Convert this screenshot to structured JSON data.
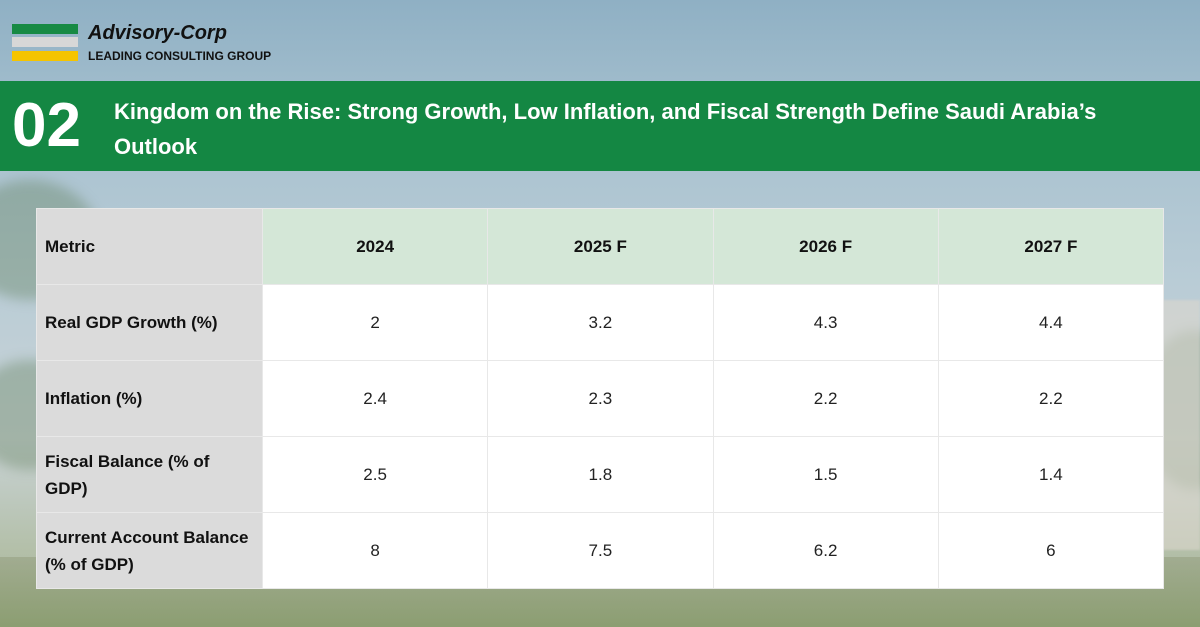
{
  "brand": {
    "name": "Advisory-Corp",
    "tagline": "LEADING CONSULTING GROUP",
    "colors": {
      "green": "#178a44",
      "grey": "#d7d7d7",
      "yellow": "#f5c400"
    }
  },
  "banner": {
    "number": "02",
    "title": "Kingdom on the Rise: Strong Growth, Low Inflation, and Fiscal Strength Define Saudi Arabia’s Outlook",
    "color": "#148743"
  },
  "table": {
    "headers": [
      "Metric",
      "2024",
      "2025 F",
      "2026 F",
      "2027 F"
    ],
    "rows": [
      {
        "metric": "Real GDP Growth (%)",
        "values": [
          "2",
          "3.2",
          "4.3",
          "4.4"
        ]
      },
      {
        "metric": "Inflation (%)",
        "values": [
          "2.4",
          "2.3",
          "2.2",
          "2.2"
        ]
      },
      {
        "metric": "Fiscal Balance (% of GDP)",
        "values": [
          "2.5",
          "1.8",
          "1.5",
          "1.4"
        ]
      },
      {
        "metric": "Current Account Balance (% of GDP)",
        "values": [
          "8",
          "7.5",
          "6.2",
          "6"
        ]
      }
    ]
  }
}
